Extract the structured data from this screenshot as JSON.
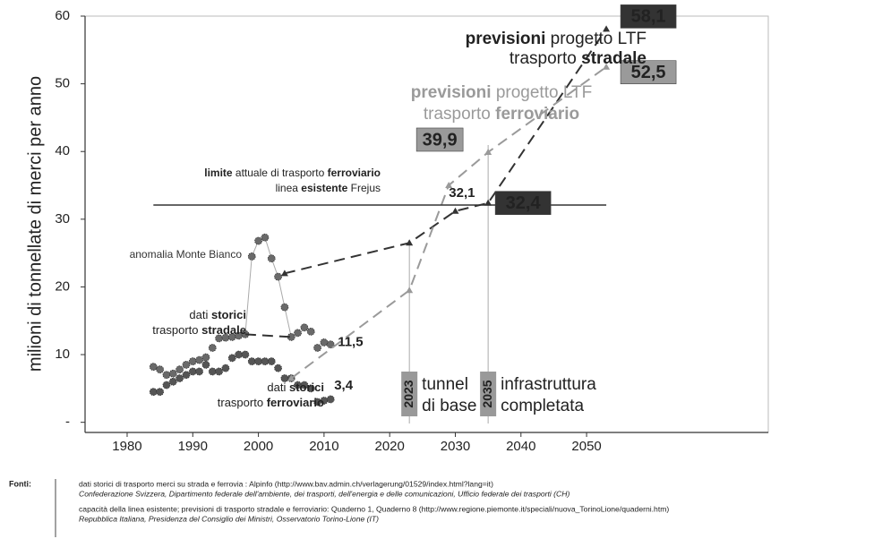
{
  "chart_data": {
    "type": "line",
    "ylabel": "milioni di tonnellate di merci per anno",
    "xlim": [
      1974,
      2077
    ],
    "ylim": [
      -1.5,
      60
    ],
    "xticks": [
      1980,
      1990,
      2000,
      2010,
      2020,
      2030,
      2040,
      2050
    ],
    "yticks": [
      {
        "value": 0,
        "label": "-"
      },
      10,
      20,
      30,
      40,
      50,
      60
    ],
    "series": [
      {
        "style": "dots",
        "color": "#6a6a6a",
        "x": [
          1984,
          1985,
          1986,
          1987,
          1988,
          1989,
          1990,
          1991,
          1992,
          1993,
          1994,
          1995,
          1996,
          1997,
          1998,
          1999,
          2000,
          2001,
          2002,
          2003,
          2004,
          2005,
          2006,
          2007,
          2008,
          2009,
          2010,
          2011
        ],
        "values": [
          8.2,
          7.8,
          7.0,
          7.2,
          7.8,
          8.5,
          9.0,
          9.2,
          9.6,
          11.0,
          12.4,
          12.5,
          12.6,
          12.8,
          13.0,
          24.5,
          26.8,
          27.3,
          24.2,
          21.5,
          17.0,
          12.6,
          13.2,
          14.0,
          13.4,
          11.0,
          11.8,
          11.5
        ],
        "value_labels": [
          null,
          null,
          null,
          null,
          null,
          null,
          null,
          null,
          null,
          null,
          null,
          null,
          null,
          null,
          null,
          null,
          null,
          null,
          null,
          null,
          null,
          null,
          null,
          null,
          null,
          null,
          null,
          "11,5"
        ]
      },
      {
        "style": "dots",
        "color": "#555555",
        "x": [
          1984,
          1985,
          1986,
          1987,
          1988,
          1989,
          1990,
          1991,
          1992,
          1993,
          1994,
          1995,
          1996,
          1997,
          1998,
          1999,
          2000,
          2001,
          2002,
          2003,
          2004,
          2005,
          2006,
          2007,
          2008,
          2009,
          2010,
          2011
        ],
        "values": [
          4.5,
          4.5,
          5.5,
          6.0,
          6.5,
          7.0,
          7.5,
          7.5,
          8.5,
          7.5,
          7.5,
          8.0,
          9.5,
          10.0,
          10.0,
          9.0,
          9.0,
          9.0,
          9.0,
          8.0,
          6.5,
          6.5,
          5.5,
          5.5,
          5.0,
          3.0,
          3.2,
          3.4
        ],
        "value_labels": [
          null,
          null,
          null,
          null,
          null,
          null,
          null,
          null,
          null,
          null,
          null,
          null,
          null,
          null,
          null,
          null,
          null,
          null,
          null,
          null,
          null,
          null,
          null,
          null,
          null,
          null,
          null,
          "3,4"
        ]
      },
      {
        "style": "dashed",
        "color": "#333333",
        "x": [
          1998,
          2005
        ],
        "values": [
          13.0,
          12.6
        ]
      },
      {
        "style": "dashed",
        "color": "#333333",
        "x": [
          2004,
          2023,
          2030,
          2035,
          2053
        ],
        "values": [
          22.0,
          26.5,
          31.2,
          32.4,
          58.1
        ],
        "value_labels": [
          null,
          null,
          null,
          "32,4",
          "58,1"
        ]
      },
      {
        "style": "dashed",
        "color": "#9a9a9a",
        "x": [
          2005,
          2023,
          2029,
          2035,
          2053
        ],
        "values": [
          6.5,
          19.5,
          35.0,
          39.9,
          52.5
        ],
        "value_labels": [
          null,
          null,
          null,
          "39,9",
          "52,5"
        ]
      },
      {
        "style": "solid",
        "color": "#333333",
        "x": [
          1984,
          2053
        ],
        "values": [
          32.1,
          32.1
        ],
        "value_labels": [
          "32,1",
          null
        ]
      }
    ],
    "annotations": [
      {
        "color": "#222222",
        "lines": [
          [
            {
              "text": "previsioni",
              "bold": true
            },
            {
              "text": " progetto LTF"
            }
          ],
          [
            {
              "text": "trasporto "
            },
            {
              "text": "stradale",
              "bold": true
            }
          ]
        ]
      },
      {
        "color": "#9a9a9a",
        "lines": [
          [
            {
              "text": "previsioni",
              "bold": true
            },
            {
              "text": " progetto LTF"
            }
          ],
          [
            {
              "text": "trasporto "
            },
            {
              "text": "ferroviario",
              "bold": true
            }
          ]
        ]
      },
      {
        "color": "#222222",
        "lines": [
          [
            {
              "text": "limite",
              "bold": true
            },
            {
              "text": " attuale di trasporto "
            },
            {
              "text": "ferroviario",
              "bold": true
            }
          ],
          [
            {
              "text": "linea "
            },
            {
              "text": "esistente",
              "bold": true
            },
            {
              "text": " Frejus"
            }
          ]
        ]
      },
      {
        "color": "#333333",
        "lines": [
          [
            {
              "text": "anomalia Monte Bianco"
            }
          ]
        ]
      },
      {
        "color": "#222222",
        "lines": [
          [
            {
              "text": "dati "
            },
            {
              "text": "storici",
              "bold": true
            }
          ],
          [
            {
              "text": "trasporto "
            },
            {
              "text": "stradale",
              "bold": true
            }
          ]
        ]
      },
      {
        "color": "#222222",
        "lines": [
          [
            {
              "text": "dati "
            },
            {
              "text": "storici",
              "bold": true
            }
          ],
          [
            {
              "text": "trasporto "
            },
            {
              "text": "ferroviario",
              "bold": true
            }
          ]
        ]
      }
    ],
    "markers": [
      {
        "x": 2023,
        "label": "2023",
        "text": [
          "tunnel",
          "di base"
        ]
      },
      {
        "x": 2035,
        "label": "2035",
        "text": [
          "infrastruttura",
          "completata"
        ]
      }
    ]
  },
  "sources": {
    "label": "Fonti:",
    "entries": [
      [
        "dati storici di trasporto merci su strada e ferrovia :  Alpinfo (http://www.bav.admin.ch/verlagerung/01529/index.html?lang=it)",
        "Confederazione Svizzera, Dipartimento federale dell'ambiente, dei trasporti, dell'energia e delle comunicazioni, Ufficio federale dei trasporti (CH)"
      ],
      [
        "capacità della linea esistente; previsioni di trasporto stradale e ferroviario:  Quaderno 1, Quaderno 8  (http://www.regione.piemonte.it/speciali/nuova_TorinoLione/quaderni.htm)",
        "Repubblica Italiana, Presidenza del Consiglio dei Ministri, Osservatorio Torino-Lione (IT)"
      ]
    ]
  }
}
